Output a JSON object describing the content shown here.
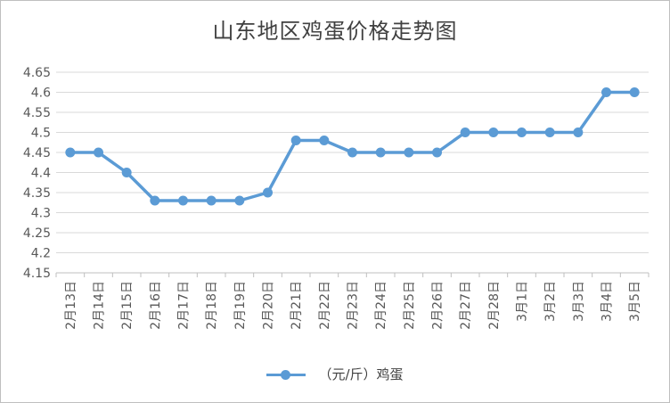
{
  "chart_data": {
    "type": "line",
    "title": "山东地区鸡蛋价格走势图",
    "categories": [
      "2月13日",
      "2月14日",
      "2月15日",
      "2月16日",
      "2月17日",
      "2月18日",
      "2月19日",
      "2月20日",
      "2月21日",
      "2月22日",
      "2月23日",
      "2月24日",
      "2月25日",
      "2月26日",
      "2月27日",
      "2月28日",
      "3月1日",
      "3月2日",
      "3月3日",
      "3月4日",
      "3月5日"
    ],
    "series": [
      {
        "name": "（元/斤）鸡蛋",
        "values": [
          4.45,
          4.45,
          4.4,
          4.33,
          4.33,
          4.33,
          4.33,
          4.35,
          4.48,
          4.48,
          4.45,
          4.45,
          4.45,
          4.45,
          4.5,
          4.5,
          4.5,
          4.5,
          4.5,
          4.6,
          4.6
        ],
        "color": "#5b9bd5"
      }
    ],
    "yticks": [
      "4.15",
      "4.2",
      "4.25",
      "4.3",
      "4.35",
      "4.4",
      "4.45",
      "4.5",
      "4.55",
      "4.6",
      "4.65"
    ],
    "ylim": [
      4.15,
      4.65
    ],
    "grid": true,
    "legend_position": "bottom"
  }
}
